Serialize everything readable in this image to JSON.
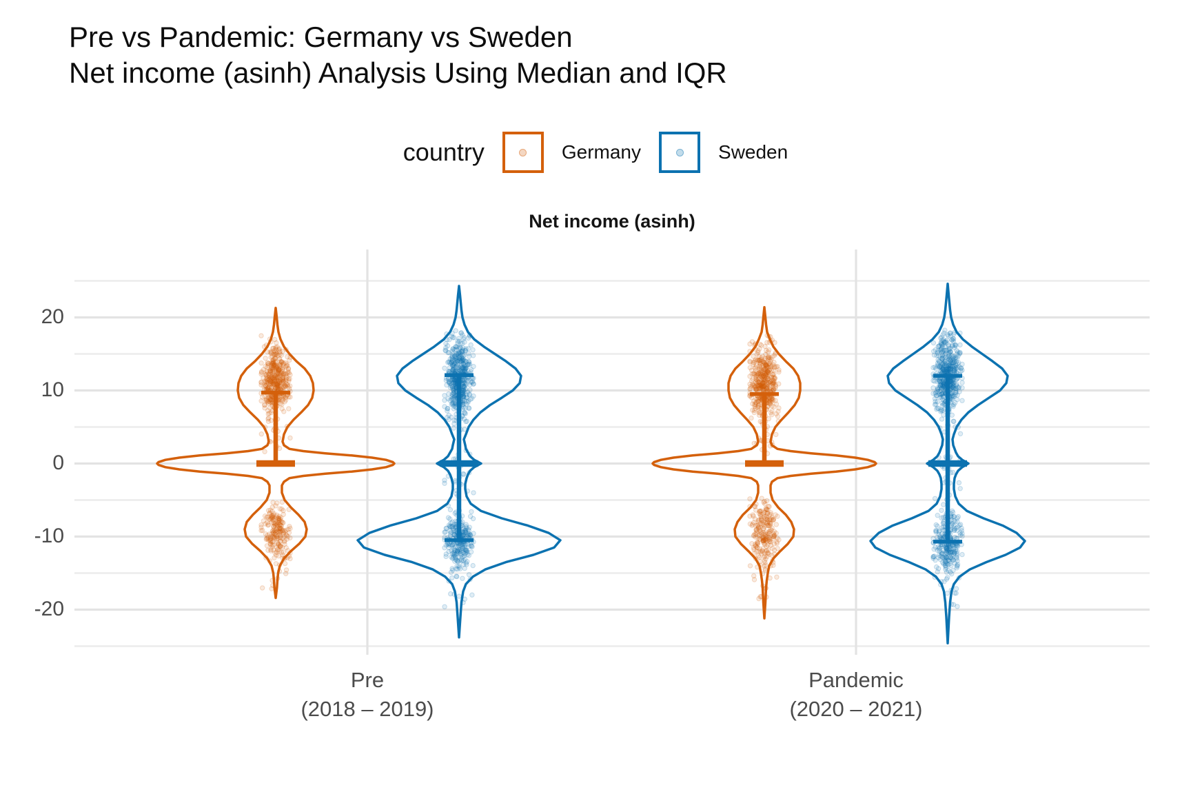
{
  "title": {
    "line1": "Pre vs Pandemic: Germany vs Sweden",
    "line2": "Net income (asinh) Analysis Using Median and IQR"
  },
  "legend": {
    "title": "country",
    "items": [
      {
        "label": "Germany",
        "color": "#D4600B"
      },
      {
        "label": "Sweden",
        "color": "#0C72B0"
      }
    ]
  },
  "strip_title": "Net income (asinh)",
  "chart_data": {
    "type": "violin+jitter",
    "title": "Net income (asinh)",
    "xlabel": "",
    "ylabel": "",
    "x_categories": [
      {
        "label": "Pre",
        "sublabel": "(2018 – 2019)"
      },
      {
        "label": "Pandemic",
        "sublabel": "(2020 – 2021)"
      }
    ],
    "y_axis": {
      "major_ticks": [
        20,
        10,
        0,
        -10,
        -20
      ],
      "minor_ticks": [
        25,
        15,
        5,
        -5,
        -15,
        -25
      ],
      "range": [
        -26,
        26
      ]
    },
    "grid": {
      "horizontal": true,
      "vertical_at_categories": true
    },
    "legend_position": "top-center",
    "series": [
      {
        "name": "Germany",
        "color": "#D4600B"
      },
      {
        "name": "Sweden",
        "color": "#0C72B0"
      }
    ],
    "violins": [
      {
        "id": "germany-pre",
        "country": "Germany",
        "category": 0,
        "side": -1,
        "color": "#D4600B",
        "summary": {
          "q1": 0,
          "median": 0,
          "q3": 9.7
        },
        "y_extent": [
          -18.4,
          21.3
        ],
        "profile": [
          [
            21.3,
            0
          ],
          [
            20,
            1.5
          ],
          [
            19,
            2.5
          ],
          [
            18,
            4
          ],
          [
            17,
            7
          ],
          [
            16,
            12
          ],
          [
            15,
            20
          ],
          [
            14,
            30
          ],
          [
            13,
            42
          ],
          [
            12,
            50
          ],
          [
            11,
            54
          ],
          [
            10,
            55
          ],
          [
            9,
            53
          ],
          [
            8,
            47
          ],
          [
            7,
            37
          ],
          [
            6,
            26
          ],
          [
            5,
            17
          ],
          [
            4,
            12
          ],
          [
            3,
            10
          ],
          [
            2.5,
            12
          ],
          [
            2,
            20
          ],
          [
            1.7,
            40
          ],
          [
            1.4,
            72
          ],
          [
            1.1,
            110
          ],
          [
            0.8,
            140
          ],
          [
            0.5,
            160
          ],
          [
            0.2,
            170
          ],
          [
            0,
            172
          ],
          [
            -0.2,
            170
          ],
          [
            -0.5,
            160
          ],
          [
            -0.8,
            140
          ],
          [
            -1.1,
            110
          ],
          [
            -1.4,
            72
          ],
          [
            -1.7,
            40
          ],
          [
            -2,
            20
          ],
          [
            -2.5,
            12
          ],
          [
            -3,
            9
          ],
          [
            -4,
            9
          ],
          [
            -5,
            13
          ],
          [
            -6,
            22
          ],
          [
            -7,
            33
          ],
          [
            -8,
            42
          ],
          [
            -9,
            45
          ],
          [
            -10,
            43
          ],
          [
            -11,
            34
          ],
          [
            -12,
            22
          ],
          [
            -13,
            12
          ],
          [
            -14,
            6
          ],
          [
            -15,
            3.5
          ],
          [
            -16,
            2.5
          ],
          [
            -17,
            1.8
          ],
          [
            -18.4,
            0
          ]
        ],
        "clusters": [
          {
            "y_mean": 11.2,
            "y_sd": 2.4,
            "n": 420,
            "clip": [
              4.5,
              17.8
            ]
          },
          {
            "y_mean": 3.5,
            "y_sd": 1.4,
            "n": 18,
            "clip": [
              1,
              6
            ]
          },
          {
            "y_mean": -9.3,
            "y_sd": 2.0,
            "n": 200,
            "clip": [
              -14.8,
              -4.8
            ]
          },
          {
            "y_mean": -16,
            "y_sd": 1.2,
            "n": 7,
            "clip": [
              -18,
              -14.5
            ]
          }
        ]
      },
      {
        "id": "sweden-pre",
        "country": "Sweden",
        "category": 0,
        "side": 1,
        "color": "#0C72B0",
        "summary": {
          "q1": -10.5,
          "median": 0,
          "q3": 12.1
        },
        "y_extent": [
          -23.8,
          24.3
        ],
        "profile": [
          [
            24.3,
            0
          ],
          [
            23,
            1.5
          ],
          [
            22,
            2.5
          ],
          [
            21,
            3.5
          ],
          [
            20,
            5
          ],
          [
            19,
            8
          ],
          [
            18,
            13
          ],
          [
            17,
            22
          ],
          [
            16,
            36
          ],
          [
            15,
            52
          ],
          [
            14,
            68
          ],
          [
            13,
            82
          ],
          [
            12,
            90
          ],
          [
            11,
            88
          ],
          [
            10,
            78
          ],
          [
            9,
            62
          ],
          [
            8,
            45
          ],
          [
            7,
            31
          ],
          [
            6,
            21
          ],
          [
            5,
            14
          ],
          [
            4,
            10
          ],
          [
            3.3,
            7
          ],
          [
            2.5,
            9
          ],
          [
            2,
            10
          ],
          [
            1.5,
            13
          ],
          [
            1,
            16
          ],
          [
            0.5,
            22
          ],
          [
            0,
            32
          ],
          [
            -0.5,
            22
          ],
          [
            -1,
            16
          ],
          [
            -1.5,
            13
          ],
          [
            -2,
            11
          ],
          [
            -2.8,
            9
          ],
          [
            -3.5,
            9
          ],
          [
            -4.5,
            11
          ],
          [
            -5.5,
            17
          ],
          [
            -6.5,
            32
          ],
          [
            -7.5,
            62
          ],
          [
            -8.5,
            100
          ],
          [
            -9.5,
            130
          ],
          [
            -10.5,
            147
          ],
          [
            -11.5,
            138
          ],
          [
            -12.5,
            108
          ],
          [
            -13.5,
            68
          ],
          [
            -14.5,
            38
          ],
          [
            -15.5,
            20
          ],
          [
            -16.5,
            10
          ],
          [
            -17.5,
            6
          ],
          [
            -19,
            3.5
          ],
          [
            -21,
            2
          ],
          [
            -23.8,
            0
          ]
        ],
        "clusters": [
          {
            "y_mean": 11.8,
            "y_sd": 3.0,
            "n": 470,
            "clip": [
              3.5,
              18.2
            ]
          },
          {
            "y_mean": -1.5,
            "y_sd": 2.2,
            "n": 26,
            "clip": [
              -6,
              2.5
            ]
          },
          {
            "y_mean": -10.6,
            "y_sd": 2.2,
            "n": 260,
            "clip": [
              -16.2,
              -5.5
            ]
          },
          {
            "y_mean": -17.5,
            "y_sd": 1.4,
            "n": 9,
            "clip": [
              -20,
              -15.5
            ]
          }
        ]
      },
      {
        "id": "germany-pandemic",
        "country": "Germany",
        "category": 1,
        "side": -1,
        "color": "#D4600B",
        "summary": {
          "q1": 0,
          "median": 0,
          "q3": 9.5
        },
        "y_extent": [
          -21.2,
          21.4
        ],
        "profile": [
          [
            21.4,
            0
          ],
          [
            20,
            1.5
          ],
          [
            19,
            2.5
          ],
          [
            18,
            4
          ],
          [
            17,
            8
          ],
          [
            16,
            13
          ],
          [
            15,
            21
          ],
          [
            14,
            31
          ],
          [
            13,
            42
          ],
          [
            12,
            49
          ],
          [
            11,
            52
          ],
          [
            10,
            52
          ],
          [
            9,
            50
          ],
          [
            8,
            44
          ],
          [
            7,
            35
          ],
          [
            6,
            25
          ],
          [
            5,
            16
          ],
          [
            4,
            11
          ],
          [
            3,
            9
          ],
          [
            2.5,
            11
          ],
          [
            2,
            19
          ],
          [
            1.7,
            38
          ],
          [
            1.4,
            68
          ],
          [
            1.1,
            104
          ],
          [
            0.8,
            132
          ],
          [
            0.5,
            150
          ],
          [
            0.2,
            160
          ],
          [
            0,
            162
          ],
          [
            -0.2,
            160
          ],
          [
            -0.5,
            150
          ],
          [
            -0.8,
            132
          ],
          [
            -1.1,
            104
          ],
          [
            -1.4,
            68
          ],
          [
            -1.7,
            38
          ],
          [
            -2,
            19
          ],
          [
            -2.5,
            11
          ],
          [
            -3,
            9
          ],
          [
            -4,
            9
          ],
          [
            -5,
            12
          ],
          [
            -6,
            20
          ],
          [
            -7,
            31
          ],
          [
            -8,
            39
          ],
          [
            -9,
            43
          ],
          [
            -10,
            42
          ],
          [
            -11,
            34
          ],
          [
            -12,
            23
          ],
          [
            -13,
            13
          ],
          [
            -14,
            7
          ],
          [
            -15,
            5
          ],
          [
            -16,
            3.5
          ],
          [
            -17,
            2.5
          ],
          [
            -18,
            2
          ],
          [
            -19,
            1.5
          ],
          [
            -21.2,
            0
          ]
        ],
        "clusters": [
          {
            "y_mean": 11.0,
            "y_sd": 2.5,
            "n": 430,
            "clip": [
              4.2,
              17.6
            ]
          },
          {
            "y_mean": 3.2,
            "y_sd": 1.5,
            "n": 20,
            "clip": [
              0.8,
              6
            ]
          },
          {
            "y_mean": -9.6,
            "y_sd": 2.2,
            "n": 220,
            "clip": [
              -15.5,
              -4.6
            ]
          },
          {
            "y_mean": -17,
            "y_sd": 1.6,
            "n": 12,
            "clip": [
              -19.5,
              -14.8
            ]
          }
        ]
      },
      {
        "id": "sweden-pandemic",
        "country": "Sweden",
        "category": 1,
        "side": 1,
        "color": "#0C72B0",
        "summary": {
          "q1": -10.7,
          "median": 0,
          "q3": 12.0
        },
        "y_extent": [
          -24.6,
          24.6
        ],
        "profile": [
          [
            24.6,
            0
          ],
          [
            23,
            1.5
          ],
          [
            22,
            2.5
          ],
          [
            21,
            3.5
          ],
          [
            20,
            5
          ],
          [
            19,
            8
          ],
          [
            18,
            13
          ],
          [
            17,
            22
          ],
          [
            16,
            35
          ],
          [
            15,
            50
          ],
          [
            14,
            65
          ],
          [
            13,
            79
          ],
          [
            12,
            87
          ],
          [
            11,
            85
          ],
          [
            10,
            76
          ],
          [
            9,
            60
          ],
          [
            8,
            44
          ],
          [
            7,
            30
          ],
          [
            6,
            20
          ],
          [
            5,
            13
          ],
          [
            4,
            9
          ],
          [
            3.3,
            7
          ],
          [
            2.5,
            8
          ],
          [
            2,
            10
          ],
          [
            1.5,
            12
          ],
          [
            1,
            15
          ],
          [
            0.5,
            21
          ],
          [
            0,
            30
          ],
          [
            -0.5,
            21
          ],
          [
            -1,
            15
          ],
          [
            -1.5,
            12
          ],
          [
            -2,
            10
          ],
          [
            -2.8,
            9
          ],
          [
            -3.5,
            9
          ],
          [
            -4.5,
            11
          ],
          [
            -5.5,
            16
          ],
          [
            -6.5,
            28
          ],
          [
            -7.5,
            52
          ],
          [
            -8.5,
            80
          ],
          [
            -9.5,
            100
          ],
          [
            -10.6,
            112
          ],
          [
            -11.5,
            105
          ],
          [
            -12.5,
            84
          ],
          [
            -13.5,
            56
          ],
          [
            -14.5,
            32
          ],
          [
            -15.5,
            17
          ],
          [
            -16.5,
            9
          ],
          [
            -17.5,
            5.5
          ],
          [
            -19,
            3.5
          ],
          [
            -21,
            2
          ],
          [
            -24.6,
            0
          ]
        ],
        "clusters": [
          {
            "y_mean": 11.9,
            "y_sd": 3.0,
            "n": 470,
            "clip": [
              3.5,
              18.3
            ]
          },
          {
            "y_mean": -1.8,
            "y_sd": 2.2,
            "n": 24,
            "clip": [
              -6,
              2.2
            ]
          },
          {
            "y_mean": -10.8,
            "y_sd": 2.3,
            "n": 260,
            "clip": [
              -16.5,
              -5.4
            ]
          },
          {
            "y_mean": -18,
            "y_sd": 1.5,
            "n": 10,
            "clip": [
              -20.5,
              -15.8
            ]
          }
        ]
      }
    ],
    "style": {
      "grid_major_color": "#E3E3E3",
      "grid_minor_color": "#ECECEC",
      "tick_label_color": "#4B4B4B",
      "point_fill_opacity": 0.13,
      "point_stroke_opacity": 0.22
    }
  }
}
